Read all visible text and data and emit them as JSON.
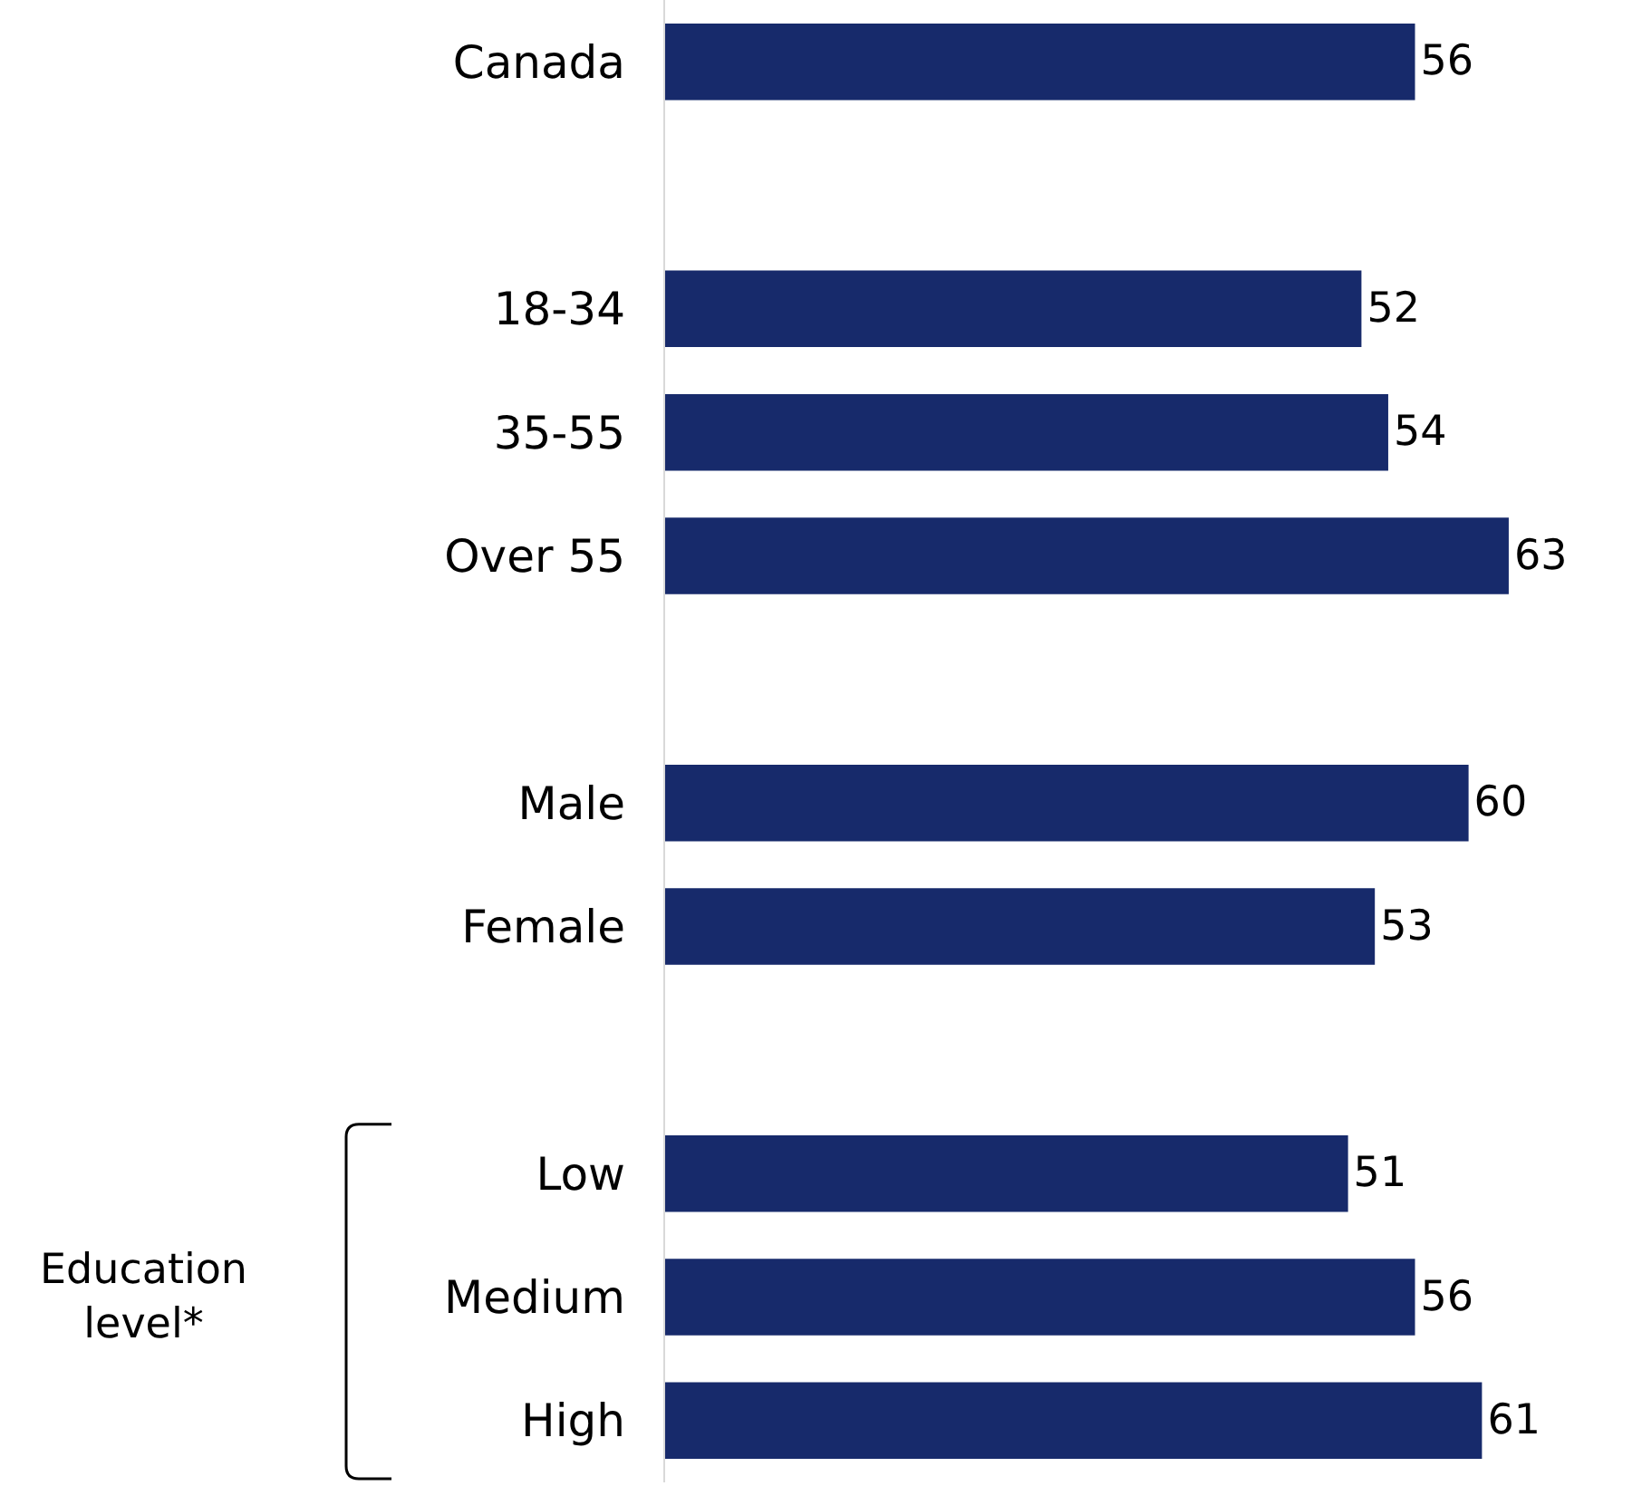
{
  "chart_data": {
    "type": "bar",
    "orientation": "horizontal",
    "categories": [
      "Canada",
      null,
      "18-34",
      "35-55",
      "Over 55",
      null,
      "Male",
      "Female",
      null,
      "Low",
      "Medium",
      "High"
    ],
    "values": [
      56,
      null,
      52,
      54,
      63,
      null,
      60,
      53,
      null,
      51,
      56,
      61
    ],
    "color": "#172a6b",
    "data_labels": true,
    "annotations": [
      "Education level*"
    ]
  }
}
